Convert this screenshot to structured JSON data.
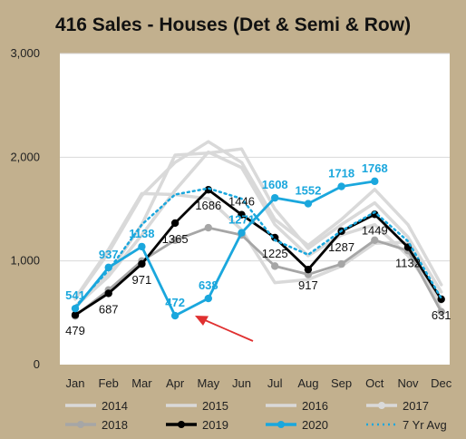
{
  "colors": {
    "background": "#c2b08e",
    "plot_bg": "#ffffff",
    "grid": "#d9d9d9",
    "title": "#111111",
    "y2014": "#d9d9d9",
    "y2015": "#d9d9d9",
    "y2016": "#d9d9d9",
    "y2017": "#d9d9d9",
    "y2018": "#a6a6a6",
    "y2019": "#000000",
    "y2020": "#1aa7dd",
    "avg": "#1aa7dd",
    "arrow": "#e03030"
  },
  "chart_data": {
    "type": "line",
    "title": "416 Sales  - Houses (Det & Semi & Row)",
    "xlabel": "",
    "ylabel": "",
    "categories": [
      "Jan",
      "Feb",
      "Mar",
      "Apr",
      "May",
      "Jun",
      "Jul",
      "Aug",
      "Sep",
      "Oct",
      "Nov",
      "Dec"
    ],
    "ylim": [
      0,
      3000
    ],
    "yticks": [
      0,
      1000,
      2000,
      3000
    ],
    "ytick_labels": [
      "0",
      "1,000",
      "2,000",
      "3,000"
    ],
    "grid": true,
    "legend_position": "bottom",
    "series": [
      {
        "name": "2014",
        "color_key": "y2014",
        "values": [
          560,
          850,
          1250,
          1680,
          2050,
          1900,
          1350,
          1050,
          1250,
          1350,
          1050,
          600
        ]
      },
      {
        "name": "2015",
        "color_key": "y2015",
        "values": [
          560,
          880,
          1350,
          2020,
          2040,
          2080,
          1500,
          1120,
          1350,
          1560,
          1230,
          700
        ]
      },
      {
        "name": "2016",
        "color_key": "y2016",
        "values": [
          630,
          1080,
          1630,
          1950,
          2150,
          1950,
          1400,
          1150,
          1400,
          1690,
          1350,
          770
        ]
      },
      {
        "name": "2017",
        "color_key": "y2017",
        "values": [
          640,
          1110,
          1650,
          1640,
          1600,
          1300,
          790,
          820,
          950,
          1170,
          1180,
          530
        ]
      },
      {
        "name": "2018",
        "color_key": "y2018",
        "values": [
          470,
          720,
          1000,
          1200,
          1320,
          1250,
          950,
          870,
          970,
          1200,
          1100,
          510
        ]
      },
      {
        "name": "2019",
        "color_key": "y2019",
        "values": [
          479,
          687,
          971,
          1365,
          1686,
          1446,
          1225,
          917,
          1287,
          1449,
          1132,
          631
        ]
      },
      {
        "name": "2020",
        "color_key": "y2020",
        "values": [
          541,
          937,
          1138,
          472,
          638,
          1271,
          1608,
          1552,
          1718,
          1768,
          null,
          null
        ]
      },
      {
        "name": "7 Yr Avg",
        "color_key": "avg",
        "dashed": true,
        "values": [
          560,
          910,
          1350,
          1640,
          1700,
          1600,
          1200,
          1060,
          1290,
          1470,
          1190,
          640
        ]
      }
    ],
    "data_labels": [
      {
        "series": "2019",
        "index": 0,
        "text": "479",
        "pos": "below"
      },
      {
        "series": "2019",
        "index": 1,
        "text": "687",
        "pos": "below"
      },
      {
        "series": "2019",
        "index": 2,
        "text": "971",
        "pos": "below"
      },
      {
        "series": "2019",
        "index": 3,
        "text": "1365",
        "pos": "below"
      },
      {
        "series": "2019",
        "index": 4,
        "text": "1686",
        "pos": "below"
      },
      {
        "series": "2019",
        "index": 5,
        "text": "1446",
        "pos": "above"
      },
      {
        "series": "2019",
        "index": 6,
        "text": "1225",
        "pos": "below"
      },
      {
        "series": "2019",
        "index": 7,
        "text": "917",
        "pos": "below"
      },
      {
        "series": "2019",
        "index": 8,
        "text": "1287",
        "pos": "below"
      },
      {
        "series": "2019",
        "index": 9,
        "text": "1449",
        "pos": "below"
      },
      {
        "series": "2019",
        "index": 10,
        "text": "1132",
        "pos": "below"
      },
      {
        "series": "2019",
        "index": 11,
        "text": "631",
        "pos": "below"
      },
      {
        "series": "2020",
        "index": 0,
        "text": "541",
        "pos": "above"
      },
      {
        "series": "2020",
        "index": 1,
        "text": "937",
        "pos": "above"
      },
      {
        "series": "2020",
        "index": 2,
        "text": "1138",
        "pos": "above"
      },
      {
        "series": "2020",
        "index": 3,
        "text": "472",
        "pos": "above"
      },
      {
        "series": "2020",
        "index": 4,
        "text": "638",
        "pos": "above"
      },
      {
        "series": "2020",
        "index": 5,
        "text": "1271",
        "pos": "above"
      },
      {
        "series": "2020",
        "index": 6,
        "text": "1608",
        "pos": "above"
      },
      {
        "series": "2020",
        "index": 7,
        "text": "1552",
        "pos": "above"
      },
      {
        "series": "2020",
        "index": 8,
        "text": "1718",
        "pos": "above"
      },
      {
        "series": "2020",
        "index": 9,
        "text": "1768",
        "pos": "above"
      }
    ],
    "annotations": [
      {
        "type": "arrow",
        "description": "red arrow pointing at Apr 2020 drop"
      }
    ]
  }
}
